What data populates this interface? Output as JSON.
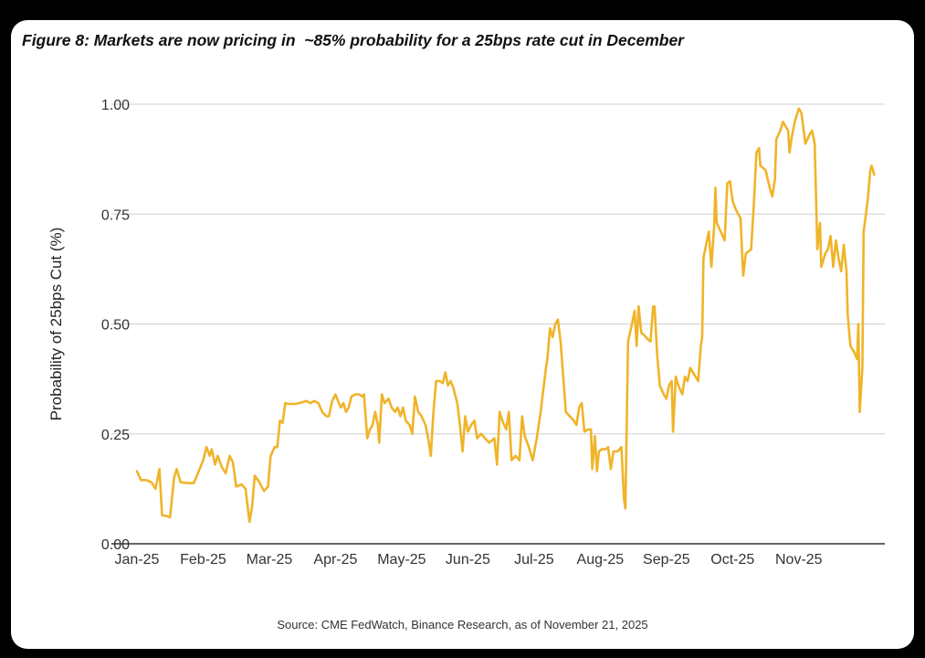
{
  "figure_title": "Figure 8: Markets are now pricing in  ~85% probability for a 25bps rate cut in December",
  "source_note": "Source: CME FedWatch, Binance Research, as of November 21, 2025",
  "colors": {
    "line": "#F0B429",
    "grid": "#CFCFCF",
    "axis": "#333333",
    "background": "#FFFFFF",
    "page": "#000000"
  },
  "chart_data": {
    "type": "line",
    "title": "Figure 8: Markets are now pricing in  ~85% probability for a 25bps rate cut in December",
    "xlabel": "",
    "ylabel": "Probability of 25bps Cut (%)",
    "ylim": [
      0,
      1
    ],
    "xlim_months": [
      0,
      11.3
    ],
    "yticks": [
      "0.00",
      "0.25",
      "0.50",
      "0.75",
      "1.00"
    ],
    "ytick_values": [
      0,
      0.25,
      0.5,
      0.75,
      1.0
    ],
    "xticks": [
      "Jan-25",
      "Feb-25",
      "Mar-25",
      "Apr-25",
      "May-25",
      "Jun-25",
      "Jul-25",
      "Aug-25",
      "Sep-25",
      "Oct-25",
      "Nov-25"
    ],
    "grid": true,
    "series": [
      {
        "name": "Probability of 25bps Cut",
        "x_unit": "months since Jan-25",
        "points": [
          [
            0.0,
            0.165
          ],
          [
            0.06,
            0.145
          ],
          [
            0.14,
            0.145
          ],
          [
            0.22,
            0.14
          ],
          [
            0.28,
            0.125
          ],
          [
            0.34,
            0.17
          ],
          [
            0.38,
            0.065
          ],
          [
            0.45,
            0.063
          ],
          [
            0.5,
            0.06
          ],
          [
            0.56,
            0.15
          ],
          [
            0.6,
            0.17
          ],
          [
            0.66,
            0.14
          ],
          [
            0.76,
            0.138
          ],
          [
            0.86,
            0.138
          ],
          [
            0.92,
            0.16
          ],
          [
            1.0,
            0.19
          ],
          [
            1.05,
            0.22
          ],
          [
            1.1,
            0.2
          ],
          [
            1.13,
            0.215
          ],
          [
            1.18,
            0.18
          ],
          [
            1.22,
            0.2
          ],
          [
            1.28,
            0.175
          ],
          [
            1.34,
            0.16
          ],
          [
            1.4,
            0.2
          ],
          [
            1.45,
            0.185
          ],
          [
            1.5,
            0.13
          ],
          [
            1.58,
            0.135
          ],
          [
            1.64,
            0.125
          ],
          [
            1.7,
            0.05
          ],
          [
            1.74,
            0.085
          ],
          [
            1.78,
            0.155
          ],
          [
            1.85,
            0.14
          ],
          [
            1.92,
            0.12
          ],
          [
            1.98,
            0.13
          ],
          [
            2.02,
            0.2
          ],
          [
            2.08,
            0.22
          ],
          [
            2.12,
            0.22
          ],
          [
            2.16,
            0.28
          ],
          [
            2.2,
            0.275
          ],
          [
            2.24,
            0.32
          ],
          [
            2.3,
            0.318
          ],
          [
            2.4,
            0.318
          ],
          [
            2.5,
            0.322
          ],
          [
            2.56,
            0.325
          ],
          [
            2.62,
            0.32
          ],
          [
            2.68,
            0.325
          ],
          [
            2.74,
            0.32
          ],
          [
            2.8,
            0.3
          ],
          [
            2.86,
            0.29
          ],
          [
            2.9,
            0.29
          ],
          [
            2.95,
            0.325
          ],
          [
            3.0,
            0.34
          ],
          [
            3.05,
            0.32
          ],
          [
            3.08,
            0.31
          ],
          [
            3.12,
            0.32
          ],
          [
            3.16,
            0.3
          ],
          [
            3.2,
            0.31
          ],
          [
            3.24,
            0.335
          ],
          [
            3.3,
            0.34
          ],
          [
            3.36,
            0.34
          ],
          [
            3.4,
            0.335
          ],
          [
            3.43,
            0.34
          ],
          [
            3.48,
            0.24
          ],
          [
            3.52,
            0.26
          ],
          [
            3.56,
            0.27
          ],
          [
            3.6,
            0.3
          ],
          [
            3.64,
            0.27
          ],
          [
            3.66,
            0.23
          ],
          [
            3.7,
            0.34
          ],
          [
            3.74,
            0.32
          ],
          [
            3.8,
            0.33
          ],
          [
            3.85,
            0.31
          ],
          [
            3.9,
            0.3
          ],
          [
            3.94,
            0.31
          ],
          [
            3.98,
            0.29
          ],
          [
            4.02,
            0.31
          ],
          [
            4.06,
            0.28
          ],
          [
            4.12,
            0.27
          ],
          [
            4.16,
            0.25
          ],
          [
            4.2,
            0.335
          ],
          [
            4.25,
            0.3
          ],
          [
            4.3,
            0.29
          ],
          [
            4.36,
            0.27
          ],
          [
            4.4,
            0.24
          ],
          [
            4.44,
            0.2
          ],
          [
            4.48,
            0.3
          ],
          [
            4.52,
            0.37
          ],
          [
            4.58,
            0.37
          ],
          [
            4.62,
            0.365
          ],
          [
            4.66,
            0.39
          ],
          [
            4.7,
            0.36
          ],
          [
            4.74,
            0.37
          ],
          [
            4.78,
            0.355
          ],
          [
            4.84,
            0.32
          ],
          [
            4.88,
            0.27
          ],
          [
            4.92,
            0.21
          ],
          [
            4.96,
            0.29
          ],
          [
            5.0,
            0.255
          ],
          [
            5.05,
            0.27
          ],
          [
            5.1,
            0.28
          ],
          [
            5.14,
            0.24
          ],
          [
            5.2,
            0.25
          ],
          [
            5.26,
            0.24
          ],
          [
            5.32,
            0.23
          ],
          [
            5.4,
            0.24
          ],
          [
            5.44,
            0.18
          ],
          [
            5.48,
            0.3
          ],
          [
            5.52,
            0.28
          ],
          [
            5.58,
            0.26
          ],
          [
            5.62,
            0.3
          ],
          [
            5.66,
            0.19
          ],
          [
            5.72,
            0.2
          ],
          [
            5.78,
            0.19
          ],
          [
            5.82,
            0.29
          ],
          [
            5.86,
            0.245
          ],
          [
            5.92,
            0.22
          ],
          [
            5.98,
            0.19
          ],
          [
            6.04,
            0.24
          ],
          [
            6.1,
            0.3
          ],
          [
            6.14,
            0.35
          ],
          [
            6.18,
            0.4
          ],
          [
            6.2,
            0.42
          ],
          [
            6.24,
            0.49
          ],
          [
            6.28,
            0.47
          ],
          [
            6.32,
            0.5
          ],
          [
            6.36,
            0.51
          ],
          [
            6.4,
            0.46
          ],
          [
            6.44,
            0.38
          ],
          [
            6.48,
            0.3
          ],
          [
            6.54,
            0.29
          ],
          [
            6.6,
            0.28
          ],
          [
            6.64,
            0.27
          ],
          [
            6.68,
            0.31
          ],
          [
            6.72,
            0.32
          ],
          [
            6.76,
            0.255
          ],
          [
            6.82,
            0.26
          ],
          [
            6.86,
            0.26
          ],
          [
            6.88,
            0.17
          ],
          [
            6.92,
            0.245
          ],
          [
            6.95,
            0.165
          ],
          [
            6.98,
            0.21
          ],
          [
            7.02,
            0.215
          ],
          [
            7.08,
            0.215
          ],
          [
            7.12,
            0.22
          ],
          [
            7.16,
            0.17
          ],
          [
            7.2,
            0.21
          ],
          [
            7.26,
            0.21
          ],
          [
            7.32,
            0.22
          ],
          [
            7.36,
            0.1
          ],
          [
            7.38,
            0.08
          ],
          [
            7.42,
            0.46
          ],
          [
            7.48,
            0.5
          ],
          [
            7.52,
            0.53
          ],
          [
            7.55,
            0.45
          ],
          [
            7.58,
            0.54
          ],
          [
            7.62,
            0.48
          ],
          [
            7.66,
            0.475
          ],
          [
            7.72,
            0.465
          ],
          [
            7.76,
            0.46
          ],
          [
            7.8,
            0.54
          ],
          [
            7.82,
            0.54
          ],
          [
            7.86,
            0.43
          ],
          [
            7.9,
            0.36
          ],
          [
            7.96,
            0.34
          ],
          [
            8.0,
            0.33
          ],
          [
            8.04,
            0.36
          ],
          [
            8.08,
            0.37
          ],
          [
            8.1,
            0.255
          ],
          [
            8.14,
            0.38
          ],
          [
            8.18,
            0.36
          ],
          [
            8.24,
            0.34
          ],
          [
            8.28,
            0.38
          ],
          [
            8.32,
            0.37
          ],
          [
            8.36,
            0.4
          ],
          [
            8.4,
            0.39
          ],
          [
            8.44,
            0.38
          ],
          [
            8.48,
            0.37
          ],
          [
            8.52,
            0.45
          ],
          [
            8.54,
            0.47
          ],
          [
            8.56,
            0.65
          ],
          [
            8.6,
            0.68
          ],
          [
            8.64,
            0.71
          ],
          [
            8.68,
            0.63
          ],
          [
            8.72,
            0.72
          ],
          [
            8.74,
            0.81
          ],
          [
            8.76,
            0.73
          ],
          [
            8.82,
            0.71
          ],
          [
            8.88,
            0.69
          ],
          [
            8.92,
            0.82
          ],
          [
            8.96,
            0.825
          ],
          [
            9.0,
            0.78
          ],
          [
            9.05,
            0.76
          ],
          [
            9.12,
            0.74
          ],
          [
            9.16,
            0.61
          ],
          [
            9.2,
            0.66
          ],
          [
            9.28,
            0.67
          ],
          [
            9.32,
            0.77
          ],
          [
            9.36,
            0.89
          ],
          [
            9.4,
            0.9
          ],
          [
            9.42,
            0.86
          ],
          [
            9.5,
            0.85
          ],
          [
            9.56,
            0.81
          ],
          [
            9.6,
            0.79
          ],
          [
            9.64,
            0.83
          ],
          [
            9.66,
            0.92
          ],
          [
            9.72,
            0.94
          ],
          [
            9.76,
            0.96
          ],
          [
            9.8,
            0.95
          ],
          [
            9.84,
            0.94
          ],
          [
            9.86,
            0.89
          ],
          [
            9.9,
            0.93
          ],
          [
            9.94,
            0.96
          ],
          [
            10.0,
            0.99
          ],
          [
            10.04,
            0.98
          ],
          [
            10.1,
            0.91
          ],
          [
            10.16,
            0.93
          ],
          [
            10.2,
            0.94
          ],
          [
            10.24,
            0.91
          ],
          [
            10.28,
            0.67
          ],
          [
            10.32,
            0.73
          ],
          [
            10.34,
            0.63
          ],
          [
            10.4,
            0.66
          ],
          [
            10.44,
            0.67
          ],
          [
            10.48,
            0.7
          ],
          [
            10.52,
            0.63
          ],
          [
            10.56,
            0.69
          ],
          [
            10.6,
            0.65
          ],
          [
            10.64,
            0.62
          ],
          [
            10.68,
            0.68
          ],
          [
            10.72,
            0.62
          ],
          [
            10.74,
            0.52
          ],
          [
            10.78,
            0.45
          ],
          [
            10.84,
            0.435
          ],
          [
            10.88,
            0.42
          ],
          [
            10.9,
            0.5
          ],
          [
            10.92,
            0.3
          ],
          [
            10.96,
            0.4
          ],
          [
            10.98,
            0.71
          ],
          [
            11.04,
            0.78
          ],
          [
            11.08,
            0.85
          ],
          [
            11.1,
            0.86
          ],
          [
            11.14,
            0.84
          ]
        ]
      }
    ]
  }
}
